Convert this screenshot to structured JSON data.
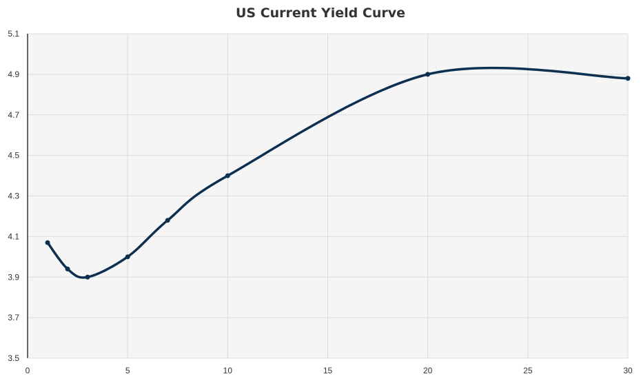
{
  "chart_data": {
    "type": "line",
    "title": "US Current Yield Curve",
    "xlabel": "",
    "ylabel": "",
    "xlim": [
      0,
      30
    ],
    "ylim": [
      3.5,
      5.1
    ],
    "xticks": [
      "0",
      "5",
      "10",
      "15",
      "20",
      "25",
      "30"
    ],
    "yticks": [
      "3.5",
      "3.7",
      "3.9",
      "4.1",
      "4.3",
      "4.5",
      "4.7",
      "4.9",
      "5.1"
    ],
    "grid": true,
    "smooth": true,
    "series": [
      {
        "x": [
          1,
          2,
          3,
          5,
          7,
          10,
          20,
          30
        ],
        "y": [
          4.07,
          3.94,
          3.9,
          4.0,
          4.18,
          4.4,
          4.9,
          4.88
        ]
      }
    ],
    "colors": {
      "line": "#0d3050",
      "plot_background": "#f5f5f5",
      "grid": "#dcdcdc",
      "axis": "#333333"
    }
  }
}
